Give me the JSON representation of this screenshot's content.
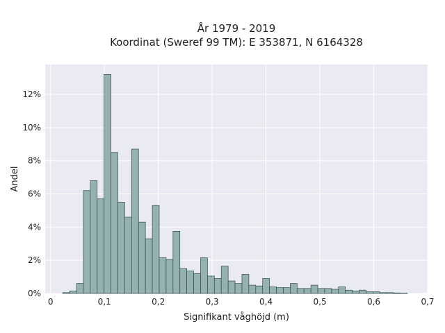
{
  "chart_data": {
    "type": "bar",
    "title": "År 1979 - 2019",
    "subtitle": "Koordinat (Sweref 99 TM): E 353871, N 6164328",
    "xlabel": "Signifikant våghöjd (m)",
    "ylabel": "Andel",
    "xlim": [
      -0.01,
      0.7
    ],
    "ylim": [
      0,
      13.8
    ],
    "grid": true,
    "x_ticks": [
      "0",
      "0,1",
      "0,2",
      "0,3",
      "0,4",
      "0,5",
      "0,6",
      "0,7"
    ],
    "x_tick_values": [
      0,
      0.1,
      0.2,
      0.3,
      0.4,
      0.5,
      0.6,
      0.7
    ],
    "y_ticks": [
      "0%",
      "2%",
      "4%",
      "6%",
      "8%",
      "10%",
      "12%"
    ],
    "y_tick_values": [
      0,
      2,
      4,
      6,
      8,
      10,
      12
    ],
    "bin_start": 0.0225,
    "bin_width": 0.0128,
    "values": [
      0.05,
      0.15,
      0.6,
      6.2,
      6.8,
      5.7,
      13.2,
      8.5,
      5.5,
      4.6,
      8.7,
      4.3,
      3.3,
      5.3,
      2.15,
      2.05,
      3.75,
      1.5,
      1.35,
      1.2,
      2.15,
      1.05,
      0.9,
      1.65,
      0.75,
      0.6,
      1.15,
      0.5,
      0.45,
      0.9,
      0.4,
      0.35,
      0.35,
      0.6,
      0.3,
      0.3,
      0.5,
      0.3,
      0.3,
      0.25,
      0.4,
      0.2,
      0.15,
      0.2,
      0.1,
      0.1,
      0.05,
      0.05,
      0.03,
      0.02
    ],
    "colors": {
      "bar_fill": "#95b1b0",
      "bar_edge": "#2f4a48",
      "plot_background": "#eaeaf2",
      "grid": "#ffffff"
    }
  }
}
